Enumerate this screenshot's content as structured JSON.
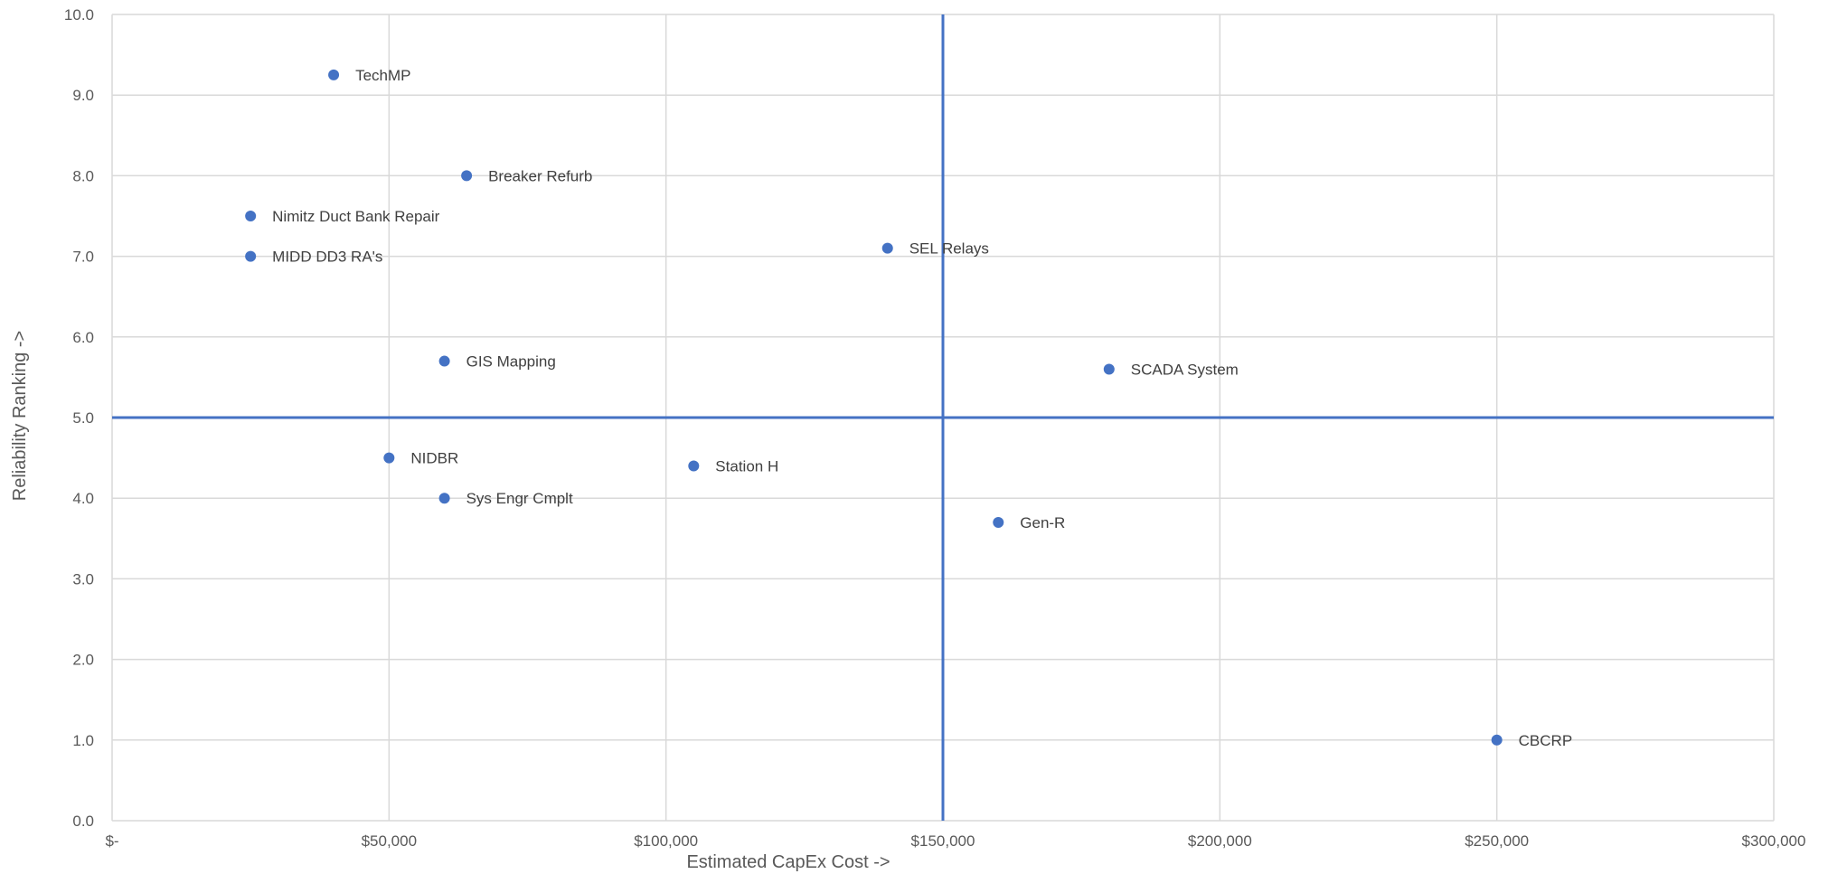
{
  "chart_data": {
    "type": "scatter",
    "title": "",
    "xlabel": "Estimated CapEx Cost  ->",
    "ylabel": "Reliability Ranking  ->",
    "xlim": [
      0,
      300000
    ],
    "ylim": [
      0,
      10
    ],
    "x_ticks": [
      {
        "value": 0,
        "label": "$-"
      },
      {
        "value": 50000,
        "label": "$50,000"
      },
      {
        "value": 100000,
        "label": "$100,000"
      },
      {
        "value": 150000,
        "label": "$150,000"
      },
      {
        "value": 200000,
        "label": "$200,000"
      },
      {
        "value": 250000,
        "label": "$250,000"
      },
      {
        "value": 300000,
        "label": "$300,000"
      }
    ],
    "y_ticks": [
      {
        "value": 0,
        "label": "0.0"
      },
      {
        "value": 1,
        "label": "1.0"
      },
      {
        "value": 2,
        "label": "2.0"
      },
      {
        "value": 3,
        "label": "3.0"
      },
      {
        "value": 4,
        "label": "4.0"
      },
      {
        "value": 5,
        "label": "5.0"
      },
      {
        "value": 6,
        "label": "6.0"
      },
      {
        "value": 7,
        "label": "7.0"
      },
      {
        "value": 8,
        "label": "8.0"
      },
      {
        "value": 9,
        "label": "9.0"
      },
      {
        "value": 10,
        "label": "10.0"
      }
    ],
    "grid": true,
    "legend": "none",
    "quadrant_lines": {
      "x": 150000,
      "y": 5.0,
      "color": "#4472C4"
    },
    "marker_color": "#4472C4",
    "points": [
      {
        "label": "TechMP",
        "x": 40000,
        "y": 9.25
      },
      {
        "label": "Breaker Refurb",
        "x": 64000,
        "y": 8.0
      },
      {
        "label": "Nimitz Duct Bank Repair",
        "x": 25000,
        "y": 7.5
      },
      {
        "label": "MIDD DD3 RA's",
        "x": 25000,
        "y": 7.0
      },
      {
        "label": "SEL Relays",
        "x": 140000,
        "y": 7.1
      },
      {
        "label": "GIS Mapping",
        "x": 60000,
        "y": 5.7
      },
      {
        "label": "SCADA System",
        "x": 180000,
        "y": 5.6
      },
      {
        "label": "NIDBR",
        "x": 50000,
        "y": 4.5
      },
      {
        "label": "Station H",
        "x": 105000,
        "y": 4.4
      },
      {
        "label": "Sys Engr Cmplt",
        "x": 60000,
        "y": 4.0
      },
      {
        "label": "Gen-R",
        "x": 160000,
        "y": 3.7
      },
      {
        "label": "CBCRP",
        "x": 250000,
        "y": 1.0
      }
    ]
  }
}
